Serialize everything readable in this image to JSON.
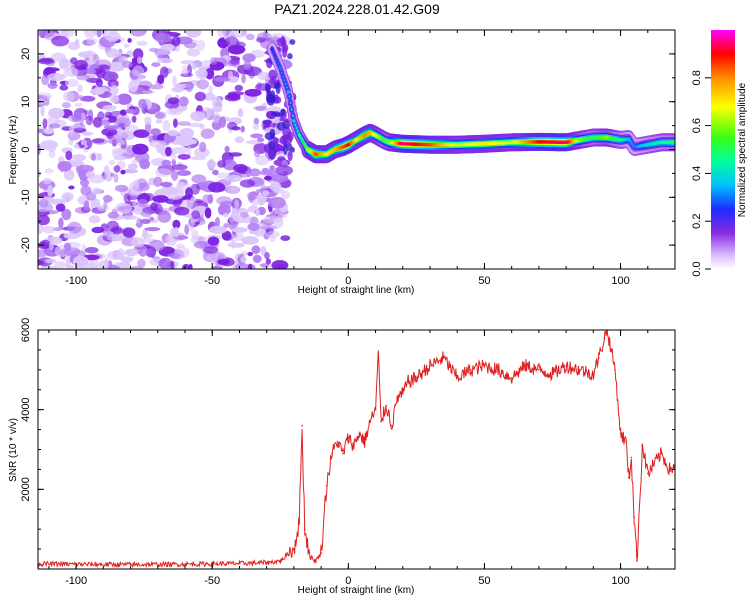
{
  "title": "PAZ1.2024.228.01.42.G09",
  "colors": {
    "snr_line": "#e02020",
    "spectrogram_noise": "#8a2be2"
  },
  "chart_data": [
    {
      "type": "heatmap",
      "xlabel": "Height of straight line (km)",
      "ylabel": "Frequency (Hz)",
      "xlim": [
        -114,
        120
      ],
      "ylim": [
        -25,
        25
      ],
      "xticks": [
        -100,
        -50,
        0,
        50,
        100
      ],
      "xtick_labels": [
        "-100",
        "-50",
        "0",
        "50",
        "100"
      ],
      "yticks": [
        -20,
        -10,
        0,
        10,
        20
      ],
      "ytick_labels": [
        "-20",
        "-10",
        "0",
        "10",
        "20"
      ],
      "colorbar": {
        "label": "Normalized spectral amplitude",
        "range": [
          0,
          1
        ],
        "ticks": [
          0.0,
          0.2,
          0.4,
          0.6,
          0.8
        ],
        "tick_labels": [
          "0.0",
          "0.2",
          "0.4",
          "0.6",
          "0.8"
        ],
        "colormap": "rainbow"
      },
      "noise_region": {
        "x_range": [
          -114,
          -25
        ],
        "amplitude": 0.1
      },
      "ridge": {
        "x": [
          -28,
          -25,
          -22,
          -20,
          -18,
          -15,
          -12,
          -8,
          -5,
          -2,
          0,
          3,
          6,
          8,
          10,
          13,
          15,
          20,
          30,
          40,
          50,
          60,
          70,
          80,
          85,
          90,
          95,
          100,
          103,
          105,
          110,
          115,
          120
        ],
        "frequency": [
          21,
          17,
          12,
          6,
          3,
          0,
          -1,
          -1,
          0,
          0.5,
          1,
          2,
          3,
          3.5,
          3,
          2,
          1.5,
          1.2,
          1,
          1,
          1.2,
          1.5,
          1.6,
          1.5,
          2,
          2.5,
          2.5,
          2,
          2.2,
          0.5,
          1,
          1.5,
          1.5
        ],
        "amplitude": [
          0.25,
          0.3,
          0.35,
          0.4,
          0.45,
          0.6,
          0.85,
          0.7,
          0.75,
          0.85,
          0.9,
          0.7,
          0.8,
          0.75,
          0.65,
          0.55,
          0.6,
          0.95,
          0.85,
          0.65,
          0.7,
          0.65,
          0.9,
          0.95,
          0.6,
          0.5,
          0.6,
          0.45,
          0.35,
          0.3,
          0.4,
          0.45,
          0.5
        ]
      }
    },
    {
      "type": "line",
      "xlabel": "Height of straight line (km)",
      "ylabel": "SNR (10 * v/v)",
      "xlim": [
        -114,
        120
      ],
      "ylim": [
        0,
        6000
      ],
      "xticks": [
        -100,
        -50,
        0,
        50,
        100
      ],
      "xtick_labels": [
        "-100",
        "-50",
        "0",
        "50",
        "100"
      ],
      "yticks": [
        2000,
        4000,
        6000
      ],
      "ytick_labels": [
        "2000",
        "4000",
        "6000"
      ],
      "series": [
        {
          "x": [
            -114,
            -100,
            -80,
            -60,
            -40,
            -30,
            -25,
            -20,
            -18,
            -17,
            -16,
            -14,
            -12,
            -10,
            -8,
            -6,
            -4,
            -2,
            0,
            2,
            4,
            6,
            8,
            10,
            11,
            12,
            14,
            16,
            18,
            20,
            22,
            25,
            30,
            35,
            40,
            45,
            50,
            55,
            60,
            65,
            70,
            75,
            80,
            85,
            90,
            92,
            94,
            95,
            96,
            98,
            100,
            102,
            103,
            104,
            105,
            106,
            108,
            110,
            112,
            115,
            118,
            120
          ],
          "values": [
            130,
            120,
            110,
            120,
            140,
            160,
            200,
            500,
            1200,
            3600,
            1000,
            300,
            200,
            400,
            2100,
            2900,
            3200,
            2900,
            3300,
            3100,
            3400,
            3200,
            3700,
            4000,
            5400,
            3700,
            4100,
            3600,
            4300,
            4400,
            4700,
            4800,
            5100,
            5300,
            4800,
            5000,
            5100,
            5000,
            4800,
            5100,
            5000,
            4900,
            5100,
            5000,
            4900,
            5300,
            5800,
            6000,
            5700,
            5000,
            3400,
            3200,
            2300,
            2800,
            1300,
            200,
            3100,
            2400,
            2600,
            2900,
            2500,
            2600
          ]
        }
      ]
    }
  ]
}
